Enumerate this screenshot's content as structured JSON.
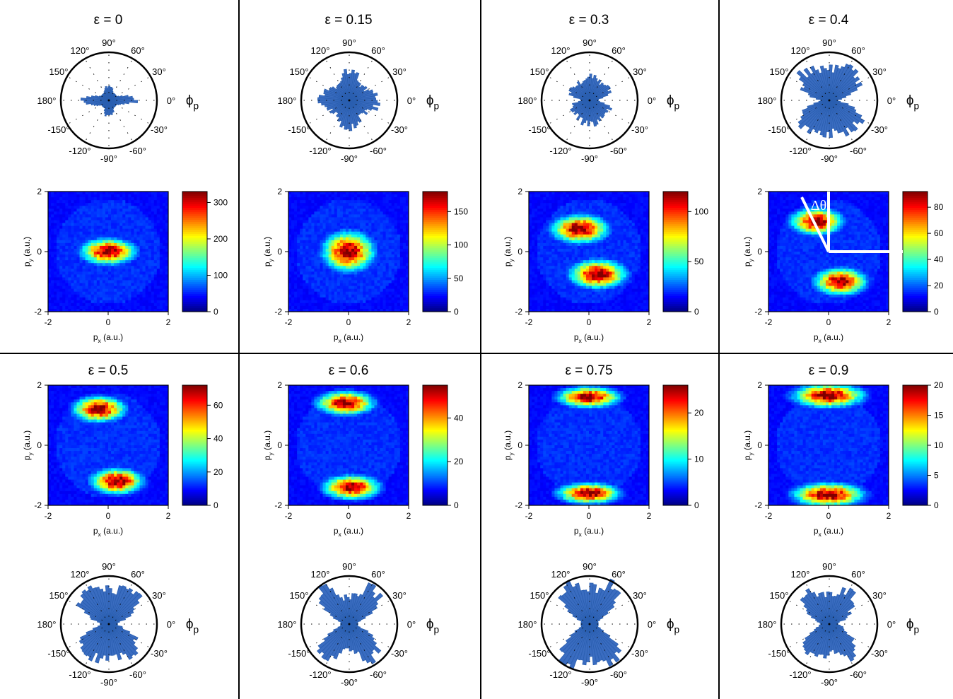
{
  "axis_labels": {
    "x": "p",
    "x_sub": "x",
    "y": "p",
    "y_sub": "y",
    "unit": " (a.u.)"
  },
  "polar_labels": {
    "angles": [
      "90°",
      "60°",
      "30°",
      "0°",
      "-30°",
      "-60°",
      "-90°",
      "-120°",
      "-150°",
      "180°",
      "150°",
      "120°"
    ],
    "phi": "ϕ",
    "phi_sub": "p"
  },
  "colors": {
    "histogram": "#2a5fb0",
    "histogram_fill": "#3a6cc0",
    "map_background": "#2c4d9e",
    "annotation": "#ffffff"
  },
  "chart_data": [
    {
      "type": "heatmap",
      "label": "ε = 0",
      "xlim": [
        -2,
        2
      ],
      "ylim": [
        -2,
        2
      ],
      "xticks": [
        -2,
        0,
        2
      ],
      "yticks": [
        -2,
        0,
        2
      ],
      "colorbar": {
        "max": 330,
        "ticks": [
          0,
          100,
          200,
          300
        ]
      },
      "lobes": [
        {
          "x": 0,
          "y": 0,
          "sx": 0.58,
          "sy": 0.27,
          "peak": 330
        }
      ],
      "polar": {
        "amp": [
          0.62,
          0.32,
          0.18,
          0.15,
          0.17,
          0.3
        ]
      }
    },
    {
      "type": "heatmap",
      "label": "ε = 0.15",
      "xlim": [
        -2,
        2
      ],
      "ylim": [
        -2,
        2
      ],
      "xticks": [
        -2,
        0,
        2
      ],
      "yticks": [
        -2,
        0,
        2
      ],
      "colorbar": {
        "max": 180,
        "ticks": [
          0,
          50,
          100,
          150
        ]
      },
      "lobes": [
        {
          "x": 0,
          "y": 0,
          "sx": 0.55,
          "sy": 0.42,
          "peak": 180
        }
      ],
      "polar": {
        "amp": [
          0.63,
          0.58,
          0.44,
          0.4,
          0.43,
          0.58
        ]
      }
    },
    {
      "type": "heatmap",
      "label": "ε = 0.3",
      "xlim": [
        -2,
        2
      ],
      "ylim": [
        -2,
        2
      ],
      "xticks": [
        -2,
        0,
        2
      ],
      "yticks": [
        -2,
        0,
        2
      ],
      "colorbar": {
        "max": 120,
        "ticks": [
          0,
          50,
          100
        ]
      },
      "lobes": [
        {
          "x": -0.3,
          "y": 0.75,
          "sx": 0.6,
          "sy": 0.3,
          "peak": 120
        },
        {
          "x": 0.3,
          "y": -0.75,
          "sx": 0.6,
          "sy": 0.3,
          "peak": 120
        }
      ],
      "polar": {
        "amp": [
          0.06,
          0.4,
          0.48,
          0.42,
          0.44,
          0.5
        ]
      }
    },
    {
      "type": "heatmap",
      "label": "ε = 0.4",
      "xlim": [
        -2,
        2
      ],
      "ylim": [
        -2,
        2
      ],
      "xticks": [
        -2,
        0,
        2
      ],
      "yticks": [
        -2,
        0,
        2
      ],
      "colorbar": {
        "max": 92,
        "ticks": [
          0,
          20,
          40,
          60,
          80
        ]
      },
      "lobes": [
        {
          "x": -0.4,
          "y": 1.0,
          "sx": 0.55,
          "sy": 0.28,
          "peak": 92
        },
        {
          "x": 0.4,
          "y": -1.0,
          "sx": 0.55,
          "sy": 0.28,
          "peak": 92
        }
      ],
      "polar": {
        "amp": [
          0.05,
          0.45,
          0.75,
          0.8,
          0.78,
          0.7
        ]
      },
      "annotation": "Δθ"
    },
    {
      "type": "heatmap",
      "label": "ε = 0.5",
      "xlim": [
        -2,
        2
      ],
      "ylim": [
        -2,
        2
      ],
      "xticks": [
        -2,
        0,
        2
      ],
      "yticks": [
        -2,
        0,
        2
      ],
      "colorbar": {
        "max": 72,
        "ticks": [
          0,
          20,
          40,
          60
        ]
      },
      "lobes": [
        {
          "x": -0.3,
          "y": 1.2,
          "sx": 0.55,
          "sy": 0.27,
          "peak": 72
        },
        {
          "x": 0.3,
          "y": -1.2,
          "sx": 0.55,
          "sy": 0.27,
          "peak": 72
        }
      ],
      "polar": {
        "amp": [
          0.05,
          0.3,
          0.68,
          0.85,
          0.82,
          0.75
        ]
      }
    },
    {
      "type": "heatmap",
      "label": "ε =  0.6",
      "xlim": [
        -2,
        2
      ],
      "ylim": [
        -2,
        2
      ],
      "xticks": [
        -2,
        0,
        2
      ],
      "yticks": [
        -2,
        0,
        2
      ],
      "colorbar": {
        "max": 55,
        "ticks": [
          0,
          20,
          40
        ]
      },
      "lobes": [
        {
          "x": -0.1,
          "y": 1.4,
          "sx": 0.6,
          "sy": 0.25,
          "peak": 55
        },
        {
          "x": 0.1,
          "y": -1.4,
          "sx": 0.6,
          "sy": 0.25,
          "peak": 55
        }
      ],
      "polar": {
        "amp": [
          0.05,
          0.2,
          0.55,
          0.88,
          0.92,
          0.6
        ]
      }
    },
    {
      "type": "heatmap",
      "label": "ε = 0.75",
      "xlim": [
        -2,
        2
      ],
      "ylim": [
        -2,
        2
      ],
      "xticks": [
        -2,
        0,
        2
      ],
      "yticks": [
        -2,
        0,
        2
      ],
      "colorbar": {
        "max": 26,
        "ticks": [
          0,
          10,
          20
        ]
      },
      "lobes": [
        {
          "x": 0,
          "y": 1.6,
          "sx": 0.65,
          "sy": 0.22,
          "peak": 26
        },
        {
          "x": 0,
          "y": -1.6,
          "sx": 0.65,
          "sy": 0.22,
          "peak": 26
        }
      ],
      "polar": {
        "amp": [
          0.05,
          0.1,
          0.4,
          0.9,
          1.02,
          0.8
        ]
      }
    },
    {
      "type": "heatmap",
      "label": "ε = 0.9",
      "xlim": [
        -2,
        2
      ],
      "ylim": [
        -2,
        2
      ],
      "xticks": [
        -2,
        0,
        2
      ],
      "yticks": [
        -2,
        0,
        2
      ],
      "colorbar": {
        "max": 20,
        "ticks": [
          0,
          5,
          10,
          15,
          20
        ]
      },
      "lobes": [
        {
          "x": 0,
          "y": 1.65,
          "sx": 0.75,
          "sy": 0.25,
          "peak": 20
        },
        {
          "x": 0,
          "y": -1.65,
          "sx": 0.75,
          "sy": 0.25,
          "peak": 20
        }
      ],
      "polar": {
        "amp": [
          0.15,
          0.28,
          0.5,
          0.78,
          0.82,
          0.65
        ]
      }
    }
  ]
}
